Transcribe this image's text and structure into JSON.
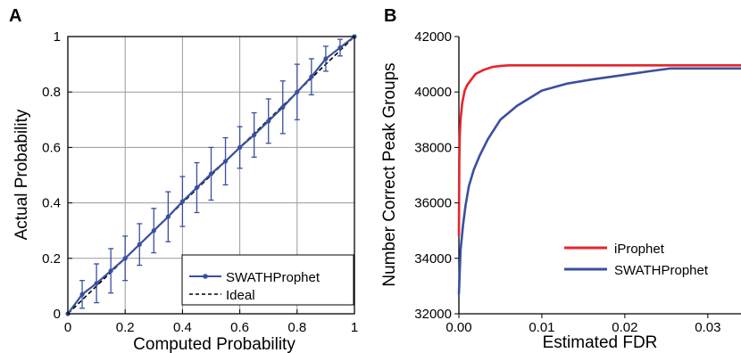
{
  "chart_data": [
    {
      "panel": "A",
      "type": "line",
      "title": "",
      "xlabel": "Computed Probability",
      "ylabel": "Actual Probability",
      "xlim": [
        0,
        1
      ],
      "ylim": [
        0,
        1
      ],
      "xticks": [
        "0",
        "0.2",
        "0.4",
        "0.6",
        "0.8",
        "1"
      ],
      "yticks": [
        "0",
        "0.2",
        "0.4",
        "0.6",
        "0.8",
        "1"
      ],
      "grid": true,
      "legend_placement": "bottom-right",
      "series": [
        {
          "name": "SWATHProphet",
          "color": "#3a4f9f",
          "style": "solid-with-markers-and-errorbars",
          "points": [
            {
              "x": 0.0,
              "y": 0.0,
              "err": 0.0
            },
            {
              "x": 0.05,
              "y": 0.07,
              "err": 0.05
            },
            {
              "x": 0.1,
              "y": 0.11,
              "err": 0.07
            },
            {
              "x": 0.15,
              "y": 0.155,
              "err": 0.08
            },
            {
              "x": 0.2,
              "y": 0.2,
              "err": 0.08
            },
            {
              "x": 0.25,
              "y": 0.25,
              "err": 0.075
            },
            {
              "x": 0.3,
              "y": 0.3,
              "err": 0.08
            },
            {
              "x": 0.35,
              "y": 0.35,
              "err": 0.09
            },
            {
              "x": 0.4,
              "y": 0.405,
              "err": 0.09
            },
            {
              "x": 0.45,
              "y": 0.455,
              "err": 0.09
            },
            {
              "x": 0.5,
              "y": 0.505,
              "err": 0.095
            },
            {
              "x": 0.55,
              "y": 0.55,
              "err": 0.085
            },
            {
              "x": 0.6,
              "y": 0.6,
              "err": 0.075
            },
            {
              "x": 0.65,
              "y": 0.645,
              "err": 0.08
            },
            {
              "x": 0.7,
              "y": 0.695,
              "err": 0.08
            },
            {
              "x": 0.75,
              "y": 0.745,
              "err": 0.095
            },
            {
              "x": 0.8,
              "y": 0.8,
              "err": 0.1
            },
            {
              "x": 0.85,
              "y": 0.855,
              "err": 0.065
            },
            {
              "x": 0.9,
              "y": 0.92,
              "err": 0.045
            },
            {
              "x": 0.95,
              "y": 0.96,
              "err": 0.03
            },
            {
              "x": 1.0,
              "y": 1.0,
              "err": 0.0
            }
          ]
        },
        {
          "name": "Ideal",
          "color": "#000000",
          "style": "dashed",
          "points": [
            {
              "x": 0,
              "y": 0
            },
            {
              "x": 1,
              "y": 1
            }
          ]
        }
      ]
    },
    {
      "panel": "B",
      "type": "line",
      "title": "",
      "xlabel": "Estimated FDR",
      "ylabel": "Number Correct Peak Groups",
      "xlim": [
        0,
        0.034
      ],
      "ylim": [
        32000,
        42000
      ],
      "xticks": [
        "0.00",
        "0.01",
        "0.02",
        "0.03"
      ],
      "yticks": [
        "32000",
        "34000",
        "36000",
        "38000",
        "40000",
        "42000"
      ],
      "grid": false,
      "legend_placement": "bottom-right",
      "series": [
        {
          "name": "iProphet",
          "color": "#e8242b",
          "points": [
            {
              "x": 0.0,
              "y": 34800
            },
            {
              "x": 5e-05,
              "y": 37500
            },
            {
              "x": 0.0001,
              "y": 38400
            },
            {
              "x": 0.0002,
              "y": 39000
            },
            {
              "x": 0.0004,
              "y": 39600
            },
            {
              "x": 0.0007,
              "y": 40050
            },
            {
              "x": 0.001,
              "y": 40250
            },
            {
              "x": 0.0015,
              "y": 40450
            },
            {
              "x": 0.002,
              "y": 40650
            },
            {
              "x": 0.003,
              "y": 40800
            },
            {
              "x": 0.004,
              "y": 40900
            },
            {
              "x": 0.005,
              "y": 40940
            },
            {
              "x": 0.006,
              "y": 40960
            },
            {
              "x": 0.01,
              "y": 40960
            },
            {
              "x": 0.02,
              "y": 40960
            },
            {
              "x": 0.034,
              "y": 40960
            }
          ]
        },
        {
          "name": "SWATHProphet",
          "color": "#3a4f9f",
          "points": [
            {
              "x": 0.0,
              "y": 32700
            },
            {
              "x": 0.0002,
              "y": 34300
            },
            {
              "x": 0.0005,
              "y": 35200
            },
            {
              "x": 0.0008,
              "y": 35900
            },
            {
              "x": 0.0012,
              "y": 36600
            },
            {
              "x": 0.0018,
              "y": 37200
            },
            {
              "x": 0.0025,
              "y": 37700
            },
            {
              "x": 0.0035,
              "y": 38300
            },
            {
              "x": 0.005,
              "y": 39000
            },
            {
              "x": 0.007,
              "y": 39500
            },
            {
              "x": 0.01,
              "y": 40050
            },
            {
              "x": 0.013,
              "y": 40300
            },
            {
              "x": 0.016,
              "y": 40450
            },
            {
              "x": 0.02,
              "y": 40620
            },
            {
              "x": 0.023,
              "y": 40750
            },
            {
              "x": 0.0255,
              "y": 40850
            },
            {
              "x": 0.03,
              "y": 40850
            },
            {
              "x": 0.034,
              "y": 40850
            }
          ]
        }
      ]
    }
  ],
  "panel_labels": {
    "a": "A",
    "b": "B"
  }
}
